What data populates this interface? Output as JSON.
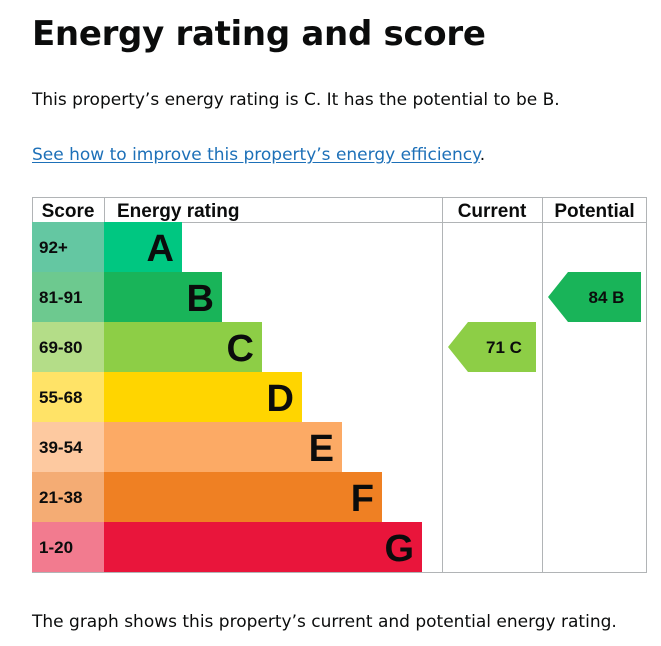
{
  "page": {
    "title": "Energy rating and score",
    "summary": "This property’s energy rating is C. It has the potential to be B.",
    "improve_link": "See how to improve this property’s energy efficiency",
    "improve_suffix": ".",
    "caption": "The graph shows this property’s current and potential energy rating."
  },
  "colors": {
    "link": "#1d70b8",
    "grid": "#b1b4b6"
  },
  "chart_data": {
    "type": "bar",
    "columns": [
      "Score",
      "Energy rating",
      "Current",
      "Potential"
    ],
    "bands": [
      {
        "letter": "A",
        "score_range": "92+",
        "color": "#00c781",
        "score_color": "#64c7a2"
      },
      {
        "letter": "B",
        "score_range": "81-91",
        "color": "#19b459",
        "score_color": "#6dc98f"
      },
      {
        "letter": "C",
        "score_range": "69-80",
        "color": "#8dce46",
        "score_color": "#b4dd88"
      },
      {
        "letter": "D",
        "score_range": "55-68",
        "color": "#ffd500",
        "score_color": "#ffe367"
      },
      {
        "letter": "E",
        "score_range": "39-54",
        "color": "#fcaa65",
        "score_color": "#fdc9a0"
      },
      {
        "letter": "F",
        "score_range": "21-38",
        "color": "#ef8023",
        "score_color": "#f4ac74"
      },
      {
        "letter": "G",
        "score_range": "1-20",
        "color": "#e9153b",
        "score_color": "#f27b8f"
      }
    ],
    "current": {
      "score": 71,
      "band": "C",
      "label": "71 C",
      "color": "#8dce46"
    },
    "potential": {
      "score": 84,
      "band": "B",
      "label": "84 B",
      "color": "#19b459"
    }
  }
}
